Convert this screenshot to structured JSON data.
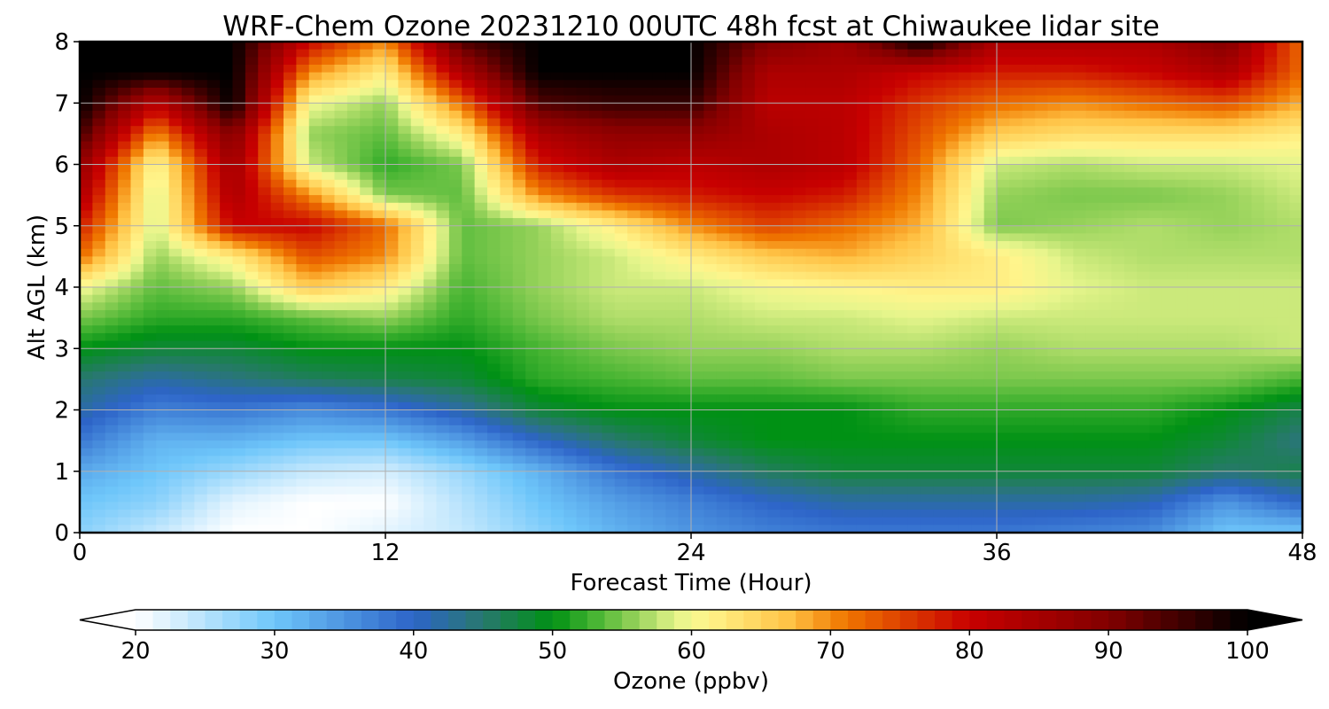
{
  "chart_data": {
    "type": "heatmap",
    "title": "WRF-Chem Ozone  20231210 00UTC 48h fcst at Chiwaukee lidar site",
    "xlabel": "Forecast Time (Hour)",
    "ylabel": "Alt AGL (km)",
    "xlim": [
      0,
      48
    ],
    "ylim": [
      0,
      8
    ],
    "x_ticks": [
      "0",
      "12",
      "24",
      "36",
      "48"
    ],
    "y_ticks": [
      "0",
      "1",
      "2",
      "3",
      "4",
      "5",
      "6",
      "7",
      "8"
    ],
    "grid": true,
    "colorbar": {
      "label": "Ozone  (ppbv)",
      "min": 20,
      "max": 100,
      "ticks": [
        "20",
        "30",
        "40",
        "50",
        "60",
        "70",
        "80",
        "90",
        "100"
      ],
      "extend": "both",
      "orientation": "horizontal"
    },
    "x_hours": [
      0,
      3,
      6,
      9,
      12,
      15,
      18,
      21,
      24,
      27,
      30,
      33,
      36,
      39,
      42,
      45,
      48
    ],
    "z_km": [
      0,
      0.5,
      1,
      1.5,
      2,
      2.5,
      3,
      3.5,
      4,
      4.5,
      5,
      5.5,
      6,
      6.5,
      7,
      7.5,
      8
    ],
    "ozone_ppbv": [
      [
        28,
        24,
        20,
        20,
        22,
        24,
        28,
        32,
        35,
        37,
        38,
        38,
        38,
        37,
        36,
        30,
        30
      ],
      [
        30,
        28,
        22,
        20,
        20,
        25,
        30,
        34,
        37,
        40,
        42,
        42,
        42,
        42,
        41,
        35,
        40
      ],
      [
        33,
        30,
        27,
        24,
        23,
        27,
        32,
        38,
        42,
        46,
        48,
        48,
        48,
        48,
        48,
        45,
        47
      ],
      [
        38,
        32,
        32,
        30,
        30,
        34,
        40,
        45,
        48,
        50,
        50,
        50,
        50,
        50,
        50,
        48,
        44
      ],
      [
        42,
        37,
        38,
        36,
        38,
        42,
        48,
        50,
        50,
        50,
        50,
        52,
        52,
        52,
        52,
        50,
        47
      ],
      [
        45,
        42,
        44,
        46,
        47,
        48,
        52,
        53,
        54,
        54,
        55,
        55,
        55,
        55,
        55,
        55,
        53
      ],
      [
        50,
        48,
        48,
        50,
        50,
        50,
        53,
        55,
        56,
        56,
        57,
        57,
        56,
        57,
        57,
        57,
        58
      ],
      [
        55,
        52,
        52,
        54,
        56,
        52,
        55,
        57,
        57,
        58,
        58,
        59,
        58,
        58,
        58,
        58,
        58
      ],
      [
        60,
        54,
        56,
        66,
        62,
        53,
        56,
        58,
        58,
        60,
        61,
        62,
        62,
        59,
        58,
        58,
        58
      ],
      [
        72,
        56,
        62,
        74,
        70,
        54,
        56,
        58,
        62,
        66,
        68,
        65,
        62,
        58,
        57,
        57,
        57
      ],
      [
        78,
        58,
        80,
        80,
        72,
        54,
        56,
        62,
        70,
        75,
        72,
        68,
        55,
        56,
        57,
        56,
        57
      ],
      [
        84,
        58,
        84,
        70,
        55,
        54,
        70,
        76,
        78,
        80,
        78,
        70,
        56,
        55,
        55,
        56,
        58
      ],
      [
        88,
        60,
        86,
        58,
        52,
        55,
        78,
        84,
        82,
        84,
        82,
        72,
        58,
        57,
        58,
        58,
        59
      ],
      [
        95,
        70,
        90,
        56,
        54,
        62,
        84,
        88,
        88,
        84,
        82,
        74,
        66,
        64,
        64,
        64,
        62
      ],
      [
        100,
        82,
        100,
        60,
        56,
        72,
        94,
        96,
        96,
        82,
        82,
        76,
        72,
        70,
        72,
        74,
        68
      ],
      [
        100,
        100,
        100,
        70,
        62,
        84,
        100,
        100,
        100,
        84,
        84,
        80,
        78,
        78,
        80,
        84,
        72
      ],
      [
        100,
        100,
        100,
        80,
        70,
        94,
        100,
        100,
        100,
        90,
        86,
        100,
        84,
        84,
        84,
        90,
        72
      ]
    ]
  }
}
